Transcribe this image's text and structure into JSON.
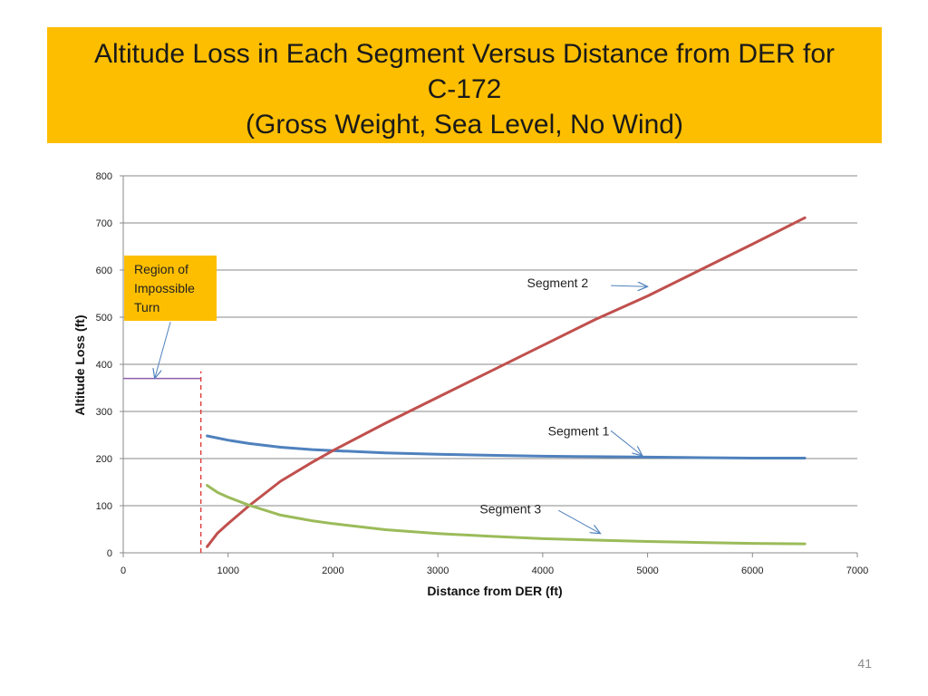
{
  "slide": {
    "title_lines": [
      "Altitude Loss in Each Segment Versus Distance from DER for",
      "C-172",
      "(Gross Weight, Sea Level, No Wind)"
    ],
    "title_bg": "#FDBE00",
    "slide_number": "41"
  },
  "chart_data": {
    "type": "line",
    "title": "",
    "xlabel": "Distance from DER (ft)",
    "ylabel": "Altitude Loss (ft)",
    "xlim": [
      0,
      7000
    ],
    "ylim": [
      0,
      800
    ],
    "x_ticks": [
      "0",
      "1000",
      "2000",
      "3000",
      "4000",
      "5000",
      "6000",
      "7000"
    ],
    "y_ticks": [
      "0",
      "100",
      "200",
      "300",
      "400",
      "500",
      "600",
      "700",
      "800"
    ],
    "grid": "horizontal",
    "legend": "none",
    "series": [
      {
        "name": "Segment 1",
        "color": "#4F81BD",
        "x": [
          800,
          1000,
          1200,
          1500,
          1800,
          2000,
          2500,
          3000,
          3500,
          4000,
          4500,
          5000,
          5500,
          6000,
          6500
        ],
        "y": [
          248,
          239,
          232,
          224,
          219,
          217,
          212,
          209,
          207,
          205,
          204,
          203,
          202,
          201,
          201
        ]
      },
      {
        "name": "Segment 2",
        "color": "#C0504D",
        "x": [
          800,
          900,
          1000,
          1200,
          1500,
          1800,
          2000,
          2500,
          3000,
          3500,
          4000,
          4500,
          5000,
          5500,
          6000,
          6500
        ],
        "y": [
          13,
          42,
          62,
          100,
          152,
          192,
          217,
          275,
          330,
          385,
          440,
          495,
          545,
          600,
          655,
          711
        ]
      },
      {
        "name": "Segment 3",
        "color": "#9BBB59",
        "x": [
          800,
          900,
          1000,
          1200,
          1500,
          1800,
          2000,
          2500,
          3000,
          3500,
          4000,
          4500,
          5000,
          5500,
          6000,
          6500
        ],
        "y": [
          143,
          128,
          118,
          101,
          80,
          68,
          62,
          49,
          41,
          35,
          30,
          27,
          24,
          22,
          20,
          19
        ]
      }
    ],
    "reference_lines": [
      {
        "kind": "horizontal",
        "y": 370,
        "x_range": [
          0,
          740
        ],
        "color": "#8E5FAE"
      },
      {
        "kind": "vertical",
        "x": 740,
        "y_range": [
          0,
          385
        ],
        "color": "#E04040",
        "dashed": true
      }
    ],
    "annotations": [
      {
        "text": "Segment 2",
        "at": [
          3850,
          563
        ],
        "arrow_from": [
          4650,
          567
        ],
        "arrow_to": [
          5000,
          565
        ]
      },
      {
        "text": "Segment 1",
        "at": [
          4050,
          249
        ],
        "arrow_from": [
          4650,
          259
        ],
        "arrow_to": [
          4950,
          206
        ]
      },
      {
        "text": "Segment 3",
        "at": [
          3400,
          84
        ],
        "arrow_from": [
          4150,
          90
        ],
        "arrow_to": [
          4550,
          41
        ]
      }
    ],
    "region_box": {
      "lines": [
        "Region of",
        "Impossible",
        "Turn"
      ],
      "bg": "#FDBE00",
      "arrow_from": [
        450,
        490
      ],
      "arrow_to": [
        300,
        370
      ]
    }
  }
}
